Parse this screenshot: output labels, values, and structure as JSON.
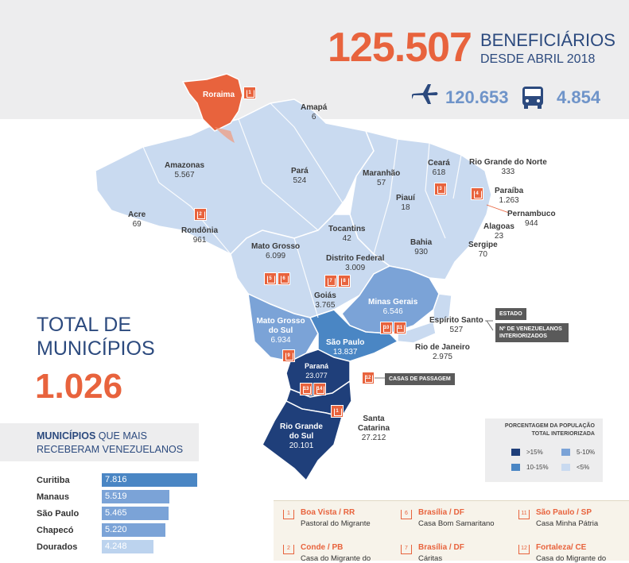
{
  "header": {
    "total": "125.507",
    "beneficiarios": "BENEFICIÁRIOS",
    "desde": "DESDE ABRIL 2018",
    "aereo": "120.653",
    "terrestre": "4.854",
    "plane_icon": "airplane-icon",
    "bus_icon": "bus-icon"
  },
  "states": [
    {
      "name": "Roraima",
      "value": ""
    },
    {
      "name": "Amapá",
      "value": "6"
    },
    {
      "name": "Amazonas",
      "value": "5.567"
    },
    {
      "name": "Pará",
      "value": "524"
    },
    {
      "name": "Maranhão",
      "value": "57"
    },
    {
      "name": "Ceará",
      "value": "618"
    },
    {
      "name": "Rio Grande do Norte",
      "value": "333"
    },
    {
      "name": "Paraíba",
      "value": "1.263"
    },
    {
      "name": "Pernambuco",
      "value": "944"
    },
    {
      "name": "Piauí",
      "value": "18"
    },
    {
      "name": "Alagoas",
      "value": "23"
    },
    {
      "name": "Sergipe",
      "value": "70"
    },
    {
      "name": "Acre",
      "value": "69"
    },
    {
      "name": "Rondônia",
      "value": "961"
    },
    {
      "name": "Tocantins",
      "value": "42"
    },
    {
      "name": "Bahia",
      "value": "930"
    },
    {
      "name": "Mato Grosso",
      "value": "6.099"
    },
    {
      "name": "Distrito Federal",
      "value": "3.009"
    },
    {
      "name": "Goiás",
      "value": "3.765"
    },
    {
      "name": "Minas Gerais",
      "value": "6.546"
    },
    {
      "name": "Espírito Santo",
      "value": "527"
    },
    {
      "name": "Mato Grosso do Sul",
      "value": "6.934"
    },
    {
      "name": "São Paulo",
      "value": "13.837"
    },
    {
      "name": "Rio de Janeiro",
      "value": "2.975"
    },
    {
      "name": "Paraná",
      "value": "23.077"
    },
    {
      "name": "Santa Catarina",
      "value": "27.212"
    },
    {
      "name": "Rio Grande do Sul",
      "value": "20.101"
    }
  ],
  "tags": {
    "estado": "ESTADO",
    "venez": "Nº DE VENEZUELANOS INTERIORIZADOS",
    "casas": "CASAS DE PASSAGEM"
  },
  "total": {
    "heading_line1": "TOTAL DE",
    "heading_line2": "MUNICÍPIOS",
    "value": "1.026"
  },
  "municipios": {
    "heading_bold": "MUNICÍPIOS",
    "heading_rest": " QUE MAIS",
    "heading_line2": "RECEBERAM VENEZUELANOS",
    "rows": [
      {
        "city": "Curitiba",
        "value": "7.816",
        "share": 1.0,
        "color": "#4a86c4"
      },
      {
        "city": "Manaus",
        "value": "5.519",
        "share": 0.706,
        "color": "#7ba3d7"
      },
      {
        "city": "São Paulo",
        "value": "5.465",
        "share": 0.699,
        "color": "#7ba3d7"
      },
      {
        "city": "Chapecó",
        "value": "5.220",
        "share": 0.668,
        "color": "#7ba3d7"
      },
      {
        "city": "Dourados",
        "value": "4.248",
        "share": 0.543,
        "color": "#bcd3ee"
      }
    ]
  },
  "legend": {
    "title_line1": "PORCENTAGEM DA POPULAÇÃO",
    "title_line2": "TOTAL INTERIORIZADA",
    "items": [
      {
        "label": ">15%",
        "color": "#1f3f7a"
      },
      {
        "label": "5-10%",
        "color": "#7ba3d7"
      },
      {
        "label": "10-15%",
        "color": "#4a86c4"
      },
      {
        "label": "<5%",
        "color": "#c9daf0"
      }
    ]
  },
  "casas": [
    {
      "num": "1",
      "city": "Boa Vista / RR",
      "name": "Pastoral do Migrante"
    },
    {
      "num": "6",
      "city": "Brasília / DF",
      "name": "Casa Bom Samaritano"
    },
    {
      "num": "11",
      "city": "São Paulo / SP",
      "name": "Casa Minha Pátria"
    },
    {
      "num": "2",
      "city": "Conde / PB",
      "name": "Casa do Migrante do"
    },
    {
      "num": "7",
      "city": "Brasília / DF",
      "name": "Cáritas"
    },
    {
      "num": "12",
      "city": "Fortaleza/ CE",
      "name": "Casa do Migrante do"
    }
  ],
  "house_numbers": [
    "1",
    "2",
    "3",
    "4",
    "5",
    "6",
    "7",
    "8",
    "9",
    "10",
    "11",
    "12",
    "13",
    "14"
  ]
}
